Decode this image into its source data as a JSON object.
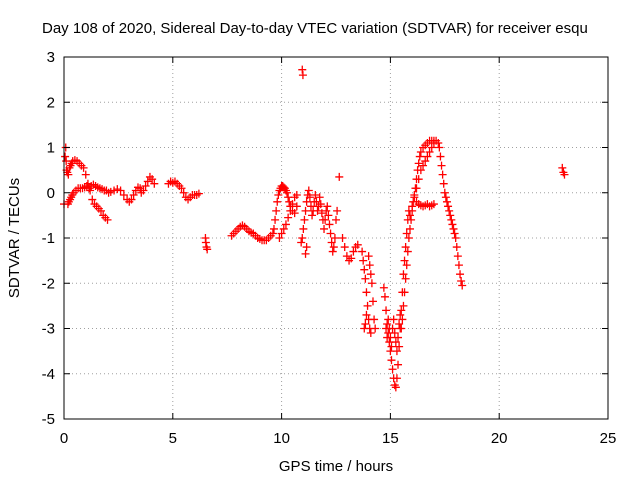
{
  "chart_data": {
    "type": "scatter",
    "title": "Day 108 of 2020, Sidereal Day-to-day VTEC variation (SDTVAR) for receiver esqu",
    "xlabel": "GPS time / hours",
    "ylabel": "SDTVAR / TECUs",
    "xlim": [
      0,
      25
    ],
    "ylim": [
      -5,
      3
    ],
    "x_ticks": [
      "0",
      "5",
      "10",
      "15",
      "20",
      "25"
    ],
    "y_ticks": [
      "3",
      "2",
      "1",
      "0",
      "-1",
      "-2",
      "-3",
      "-4",
      "-5"
    ],
    "grid": true,
    "marker": "+",
    "color": "#ff0000",
    "points": [
      [
        0.0,
        -0.25
      ],
      [
        0.05,
        0.8
      ],
      [
        0.08,
        1.0
      ],
      [
        0.1,
        0.7
      ],
      [
        0.12,
        0.5
      ],
      [
        0.15,
        0.45
      ],
      [
        0.18,
        -0.25
      ],
      [
        0.2,
        0.4
      ],
      [
        0.22,
        -0.2
      ],
      [
        0.25,
        0.55
      ],
      [
        0.28,
        -0.15
      ],
      [
        0.3,
        0.6
      ],
      [
        0.33,
        -0.1
      ],
      [
        0.35,
        0.65
      ],
      [
        0.38,
        -0.05
      ],
      [
        0.4,
        0.7
      ],
      [
        0.45,
        0.0
      ],
      [
        0.5,
        0.72
      ],
      [
        0.55,
        0.05
      ],
      [
        0.6,
        0.7
      ],
      [
        0.65,
        0.1
      ],
      [
        0.7,
        0.65
      ],
      [
        0.75,
        0.1
      ],
      [
        0.8,
        0.6
      ],
      [
        0.85,
        0.1
      ],
      [
        0.9,
        0.55
      ],
      [
        0.95,
        0.12
      ],
      [
        1.0,
        0.4
      ],
      [
        1.05,
        0.15
      ],
      [
        1.1,
        0.2
      ],
      [
        1.15,
        0.1
      ],
      [
        1.2,
        0.05
      ],
      [
        1.25,
        0.15
      ],
      [
        1.3,
        -0.15
      ],
      [
        1.35,
        0.18
      ],
      [
        1.4,
        -0.25
      ],
      [
        1.45,
        0.15
      ],
      [
        1.5,
        -0.3
      ],
      [
        1.55,
        0.12
      ],
      [
        1.6,
        -0.35
      ],
      [
        1.65,
        0.1
      ],
      [
        1.7,
        -0.4
      ],
      [
        1.75,
        0.08
      ],
      [
        1.8,
        -0.5
      ],
      [
        1.85,
        0.05
      ],
      [
        1.9,
        -0.55
      ],
      [
        1.95,
        0.05
      ],
      [
        2.0,
        -0.6
      ],
      [
        2.05,
        0.0
      ],
      [
        2.15,
        0.02
      ],
      [
        2.3,
        0.05
      ],
      [
        2.45,
        0.08
      ],
      [
        2.6,
        0.05
      ],
      [
        2.75,
        -0.05
      ],
      [
        2.9,
        -0.15
      ],
      [
        3.0,
        -0.2
      ],
      [
        3.1,
        -0.15
      ],
      [
        3.2,
        -0.05
      ],
      [
        3.3,
        0.05
      ],
      [
        3.4,
        0.12
      ],
      [
        3.5,
        0.1
      ],
      [
        3.55,
        0.0
      ],
      [
        3.65,
        0.05
      ],
      [
        3.75,
        0.15
      ],
      [
        3.85,
        0.25
      ],
      [
        3.95,
        0.35
      ],
      [
        4.05,
        0.3
      ],
      [
        4.15,
        0.2
      ],
      [
        4.8,
        0.2
      ],
      [
        4.9,
        0.25
      ],
      [
        5.0,
        0.22
      ],
      [
        5.1,
        0.25
      ],
      [
        5.2,
        0.2
      ],
      [
        5.3,
        0.15
      ],
      [
        5.4,
        0.1
      ],
      [
        5.5,
        0.0
      ],
      [
        5.6,
        -0.1
      ],
      [
        5.7,
        -0.15
      ],
      [
        5.8,
        -0.1
      ],
      [
        5.9,
        -0.05
      ],
      [
        6.0,
        -0.05
      ],
      [
        6.1,
        -0.05
      ],
      [
        6.2,
        -0.02
      ],
      [
        6.5,
        -1.0
      ],
      [
        6.52,
        -1.1
      ],
      [
        6.55,
        -1.2
      ],
      [
        6.58,
        -1.25
      ],
      [
        7.7,
        -0.95
      ],
      [
        7.8,
        -0.9
      ],
      [
        7.9,
        -0.85
      ],
      [
        8.0,
        -0.8
      ],
      [
        8.1,
        -0.75
      ],
      [
        8.2,
        -0.72
      ],
      [
        8.3,
        -0.75
      ],
      [
        8.4,
        -0.8
      ],
      [
        8.5,
        -0.85
      ],
      [
        8.6,
        -0.88
      ],
      [
        8.7,
        -0.9
      ],
      [
        8.8,
        -0.95
      ],
      [
        8.9,
        -1.0
      ],
      [
        9.0,
        -1.02
      ],
      [
        9.1,
        -1.05
      ],
      [
        9.2,
        -1.05
      ],
      [
        9.3,
        -1.05
      ],
      [
        9.4,
        -1.0
      ],
      [
        9.5,
        -0.95
      ],
      [
        9.6,
        -0.9
      ],
      [
        9.65,
        -0.8
      ],
      [
        9.7,
        -0.6
      ],
      [
        9.75,
        -0.4
      ],
      [
        9.8,
        -0.2
      ],
      [
        9.85,
        -0.05
      ],
      [
        9.9,
        0.05
      ],
      [
        9.95,
        0.1
      ],
      [
        10.0,
        0.15
      ],
      [
        10.05,
        0.15
      ],
      [
        10.1,
        0.12
      ],
      [
        10.15,
        0.1
      ],
      [
        10.2,
        0.05
      ],
      [
        10.25,
        0.0
      ],
      [
        10.3,
        -0.1
      ],
      [
        10.35,
        -0.2
      ],
      [
        10.4,
        -0.3
      ],
      [
        10.5,
        -0.4
      ],
      [
        10.6,
        -0.45
      ],
      [
        10.7,
        -0.3
      ],
      [
        9.9,
        -1.0
      ],
      [
        10.0,
        -0.9
      ],
      [
        10.1,
        -0.8
      ],
      [
        10.2,
        -0.7
      ],
      [
        10.3,
        -0.55
      ],
      [
        10.4,
        -0.4
      ],
      [
        10.5,
        -0.25
      ],
      [
        10.6,
        -0.1
      ],
      [
        10.7,
        -0.05
      ],
      [
        10.95,
        2.72
      ],
      [
        10.98,
        2.6
      ],
      [
        10.9,
        -1.1
      ],
      [
        10.95,
        -1.0
      ],
      [
        11.0,
        -0.8
      ],
      [
        11.05,
        -0.6
      ],
      [
        11.1,
        -0.4
      ],
      [
        11.15,
        -0.2
      ],
      [
        11.2,
        -0.05
      ],
      [
        11.25,
        0.05
      ],
      [
        11.3,
        -0.1
      ],
      [
        11.35,
        -0.3
      ],
      [
        11.4,
        -0.5
      ],
      [
        11.45,
        -0.4
      ],
      [
        11.5,
        -0.2
      ],
      [
        11.55,
        -0.05
      ],
      [
        11.6,
        -0.2
      ],
      [
        11.65,
        -0.4
      ],
      [
        11.7,
        -0.3
      ],
      [
        11.75,
        -0.1
      ],
      [
        11.8,
        -0.25
      ],
      [
        11.85,
        -0.45
      ],
      [
        11.9,
        -0.6
      ],
      [
        11.95,
        -0.8
      ],
      [
        12.0,
        -0.6
      ],
      [
        12.05,
        -0.4
      ],
      [
        12.1,
        -0.3
      ],
      [
        12.15,
        -0.5
      ],
      [
        12.2,
        -0.7
      ],
      [
        12.25,
        -0.9
      ],
      [
        12.3,
        -1.1
      ],
      [
        12.35,
        -1.3
      ],
      [
        12.4,
        -1.2
      ],
      [
        12.45,
        -1.0
      ],
      [
        12.5,
        -0.6
      ],
      [
        12.55,
        -0.4
      ],
      [
        11.1,
        -1.35
      ],
      [
        11.15,
        -1.2
      ],
      [
        12.65,
        0.35
      ],
      [
        12.8,
        -1.0
      ],
      [
        12.9,
        -1.2
      ],
      [
        13.0,
        -1.4
      ],
      [
        13.1,
        -1.5
      ],
      [
        13.2,
        -1.45
      ],
      [
        13.3,
        -1.3
      ],
      [
        13.4,
        -1.2
      ],
      [
        13.5,
        -1.15
      ],
      [
        13.7,
        -1.3
      ],
      [
        13.75,
        -1.5
      ],
      [
        13.8,
        -1.7
      ],
      [
        13.85,
        -1.9
      ],
      [
        13.9,
        -2.2
      ],
      [
        13.95,
        -2.5
      ],
      [
        14.0,
        -2.8
      ],
      [
        14.05,
        -3.0
      ],
      [
        14.1,
        -3.1
      ],
      [
        13.85,
        -2.9
      ],
      [
        13.8,
        -3.0
      ],
      [
        13.9,
        -2.7
      ],
      [
        14.0,
        -1.4
      ],
      [
        14.05,
        -1.6
      ],
      [
        14.1,
        -1.8
      ],
      [
        14.15,
        -2.0
      ],
      [
        14.2,
        -2.4
      ],
      [
        14.25,
        -2.8
      ],
      [
        14.3,
        -3.0
      ],
      [
        14.7,
        -2.1
      ],
      [
        14.75,
        -2.3
      ],
      [
        14.8,
        -2.6
      ],
      [
        14.85,
        -2.9
      ],
      [
        14.9,
        -3.1
      ],
      [
        14.95,
        -3.3
      ],
      [
        15.0,
        -3.5
      ],
      [
        15.05,
        -3.7
      ],
      [
        15.1,
        -3.9
      ],
      [
        15.15,
        -4.1
      ],
      [
        15.2,
        -4.25
      ],
      [
        15.25,
        -4.3
      ],
      [
        15.3,
        -4.1
      ],
      [
        15.35,
        -3.8
      ],
      [
        15.4,
        -3.4
      ],
      [
        15.45,
        -3.0
      ],
      [
        15.5,
        -2.6
      ],
      [
        15.55,
        -2.2
      ],
      [
        15.6,
        -1.8
      ],
      [
        15.65,
        -1.5
      ],
      [
        15.7,
        -1.2
      ],
      [
        15.75,
        -0.9
      ],
      [
        15.8,
        -0.6
      ],
      [
        15.85,
        -0.4
      ],
      [
        14.8,
        -3.0
      ],
      [
        14.85,
        -3.2
      ],
      [
        14.9,
        -2.8
      ],
      [
        14.95,
        -3.0
      ],
      [
        15.0,
        -3.2
      ],
      [
        15.05,
        -3.4
      ],
      [
        15.1,
        -3.0
      ],
      [
        15.15,
        -2.8
      ],
      [
        15.2,
        -3.1
      ],
      [
        15.25,
        -3.3
      ],
      [
        15.3,
        -3.5
      ],
      [
        15.35,
        -3.2
      ],
      [
        15.4,
        -2.9
      ],
      [
        15.45,
        -2.7
      ],
      [
        15.5,
        -3.0
      ],
      [
        15.55,
        -2.8
      ],
      [
        15.6,
        -2.5
      ],
      [
        15.65,
        -2.2
      ],
      [
        15.7,
        -1.9
      ],
      [
        15.75,
        -1.6
      ],
      [
        15.8,
        -1.3
      ],
      [
        15.85,
        -1.0
      ],
      [
        15.9,
        -0.8
      ],
      [
        15.95,
        -0.6
      ],
      [
        16.0,
        -0.4
      ],
      [
        16.05,
        -0.2
      ],
      [
        16.1,
        -0.05
      ],
      [
        16.15,
        0.1
      ],
      [
        16.2,
        0.3
      ],
      [
        16.25,
        0.5
      ],
      [
        16.3,
        0.65
      ],
      [
        16.35,
        0.8
      ],
      [
        16.4,
        0.9
      ],
      [
        16.5,
        1.0
      ],
      [
        16.6,
        1.05
      ],
      [
        16.7,
        1.1
      ],
      [
        16.8,
        1.15
      ],
      [
        16.9,
        1.15
      ],
      [
        17.0,
        1.15
      ],
      [
        17.1,
        1.15
      ],
      [
        17.2,
        1.1
      ],
      [
        17.25,
        1.0
      ],
      [
        17.3,
        0.8
      ],
      [
        17.35,
        0.6
      ],
      [
        17.4,
        0.4
      ],
      [
        17.45,
        0.2
      ],
      [
        17.5,
        0.0
      ],
      [
        17.55,
        -0.1
      ],
      [
        17.6,
        -0.2
      ],
      [
        17.65,
        -0.3
      ],
      [
        17.7,
        -0.4
      ],
      [
        17.75,
        -0.5
      ],
      [
        17.8,
        -0.6
      ],
      [
        17.85,
        -0.7
      ],
      [
        17.9,
        -0.8
      ],
      [
        17.95,
        -0.9
      ],
      [
        18.0,
        -1.0
      ],
      [
        18.05,
        -1.2
      ],
      [
        18.1,
        -1.4
      ],
      [
        18.15,
        -1.6
      ],
      [
        18.2,
        -1.8
      ],
      [
        18.25,
        -1.95
      ],
      [
        18.3,
        -2.05
      ],
      [
        15.9,
        -0.5
      ],
      [
        16.0,
        -0.3
      ],
      [
        16.1,
        -0.1
      ],
      [
        16.2,
        0.1
      ],
      [
        16.3,
        0.3
      ],
      [
        16.4,
        0.5
      ],
      [
        16.5,
        0.6
      ],
      [
        16.6,
        0.7
      ],
      [
        16.7,
        0.8
      ],
      [
        16.8,
        0.9
      ],
      [
        16.9,
        1.0
      ],
      [
        17.0,
        1.1
      ],
      [
        16.2,
        -0.2
      ],
      [
        16.3,
        -0.25
      ],
      [
        16.4,
        -0.28
      ],
      [
        16.5,
        -0.3
      ],
      [
        16.6,
        -0.28
      ],
      [
        16.7,
        -0.25
      ],
      [
        16.8,
        -0.3
      ],
      [
        16.9,
        -0.28
      ],
      [
        17.0,
        -0.25
      ],
      [
        22.9,
        0.55
      ],
      [
        22.95,
        0.45
      ],
      [
        23.0,
        0.4
      ]
    ]
  }
}
